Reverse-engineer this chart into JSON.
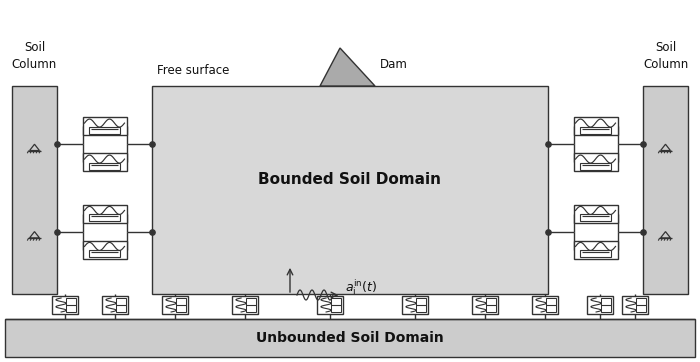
{
  "fig_width": 7.0,
  "fig_height": 3.62,
  "dpi": 100,
  "bg_color": "#ffffff",
  "soil_col_color": "#cccccc",
  "bounded_soil_color": "#d8d8d8",
  "unbounded_soil_color": "#cccccc",
  "dam_color": "#aaaaaa",
  "line_color": "#333333",
  "text_color": "#111111",
  "bounded_text": "Bounded Soil Domain",
  "unbounded_text": "Unbounded Soil Domain",
  "free_surface_text": "Free surface",
  "dam_text": "Dam",
  "soil_col_text": "Soil\nColumn"
}
